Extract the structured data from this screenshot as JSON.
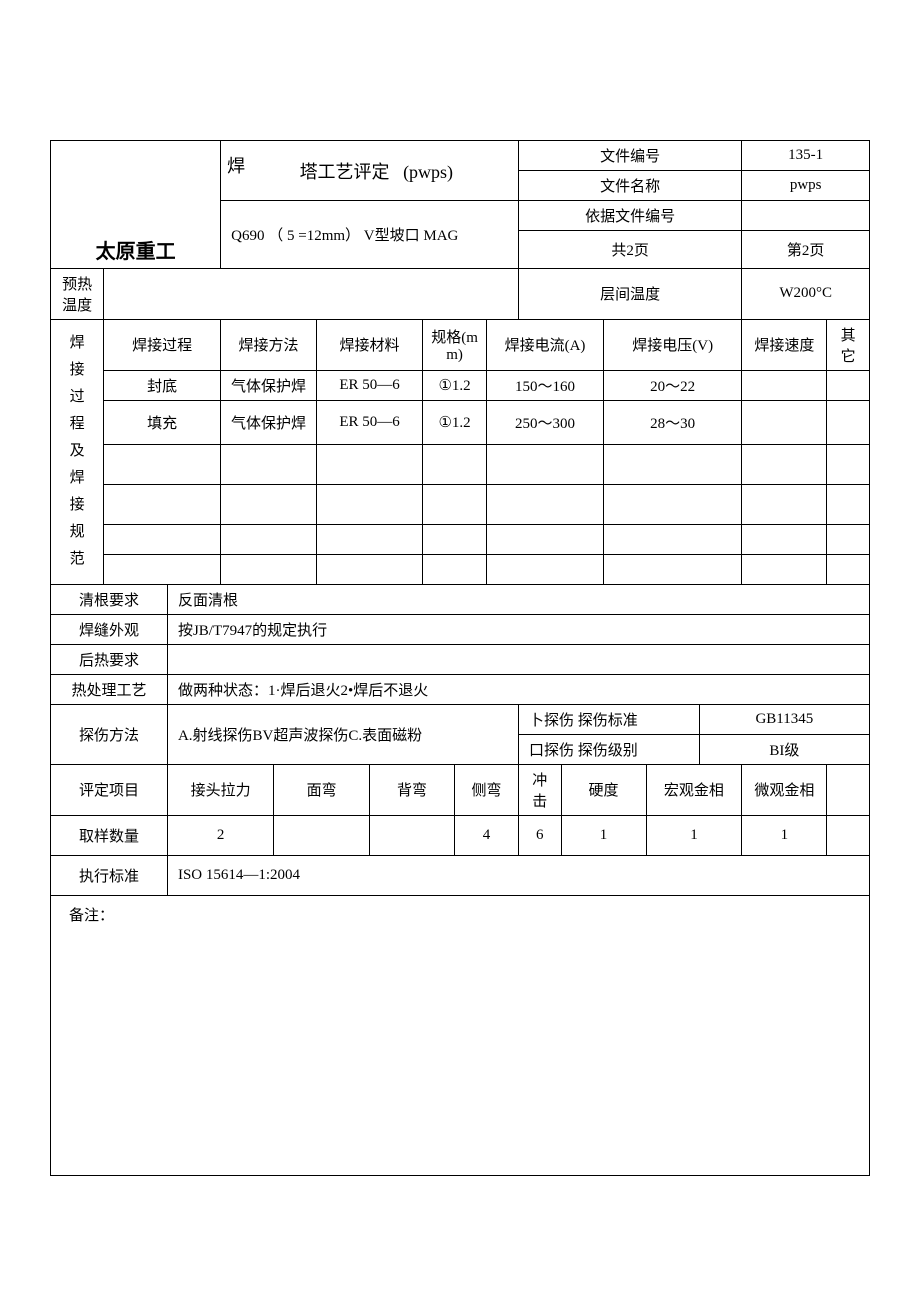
{
  "header": {
    "title_prefix": "焊",
    "title_main": "塔工艺评定",
    "title_suffix": "(pwps)",
    "subtitle": "Q690 （ 5 =12mm） V型坡口 MAG",
    "company": "太原重工",
    "doc_no_label": "文件编号",
    "doc_no_value": "135-1",
    "doc_name_label": "文件名称",
    "doc_name_value": "pwps",
    "basis_label": "依据文件编号",
    "pages_total": "共2页",
    "pages_current": "第2页"
  },
  "preheat": {
    "label": "预热 温度",
    "interpass_label": "层间温度",
    "interpass_value": "W200°C"
  },
  "process": {
    "section_label": "焊 接 过 程 及 焊 接 规 范",
    "cols": {
      "step": "焊接过程",
      "method": "焊接方法",
      "material": "焊接材料",
      "spec": "规格(mm)",
      "current": "焊接电流(A)",
      "voltage": "焊接电压(V)",
      "speed": "焊接速度",
      "other": "其它"
    },
    "rows": [
      {
        "step": "封底",
        "method": "气体保护焊",
        "material": "ER 50—6",
        "spec": "①1.2",
        "current": "150〜160",
        "voltage": "20〜22",
        "speed": "",
        "other": ""
      },
      {
        "step": "填充",
        "method": "气体保护焊",
        "material": "ER 50—6",
        "spec": "①1.2",
        "current": "250〜300",
        "voltage": "28〜30",
        "speed": "",
        "other": ""
      },
      {
        "step": "",
        "method": "",
        "material": "",
        "spec": "",
        "current": "",
        "voltage": "",
        "speed": "",
        "other": ""
      },
      {
        "step": "",
        "method": "",
        "material": "",
        "spec": "",
        "current": "",
        "voltage": "",
        "speed": "",
        "other": ""
      },
      {
        "step": "",
        "method": "",
        "material": "",
        "spec": "",
        "current": "",
        "voltage": "",
        "speed": "",
        "other": ""
      },
      {
        "step": "",
        "method": "",
        "material": "",
        "spec": "",
        "current": "",
        "voltage": "",
        "speed": "",
        "other": ""
      }
    ]
  },
  "rows2": {
    "root_clean_label": "清根要求",
    "root_clean_value": "反面清根",
    "weld_appearance_label": "焊缝外观",
    "weld_appearance_value": "按JB/T7947的规定执行",
    "postheat_label": "后热要求",
    "postheat_value": "",
    "heat_treat_label": "热处理工艺",
    "heat_treat_value": "做两种状态：1·焊后退火2•焊后不退火",
    "ndt_method_label": "探伤方法",
    "ndt_method_value": "A.射线探伤BV超声波探伤C.表面磁粉",
    "ndt_std_label1": "卜探伤 探伤标准",
    "ndt_std_value1": "GB11345",
    "ndt_std_label2": "口探伤 探伤级别",
    "ndt_std_value2": "BI级"
  },
  "eval": {
    "item_label": "评定项目",
    "cols": [
      "接头拉力",
      "面弯",
      "背弯",
      "侧弯",
      "冲击",
      "硬度",
      "宏观金相",
      "微观金相",
      ""
    ],
    "sample_label": "取样数量",
    "samples": [
      "2",
      "",
      "",
      "4",
      "6",
      "1",
      "1",
      "1",
      ""
    ],
    "standard_label": "执行标准",
    "standard_value": "ISO 15614—1:2004"
  },
  "notes": {
    "label": "备注："
  }
}
